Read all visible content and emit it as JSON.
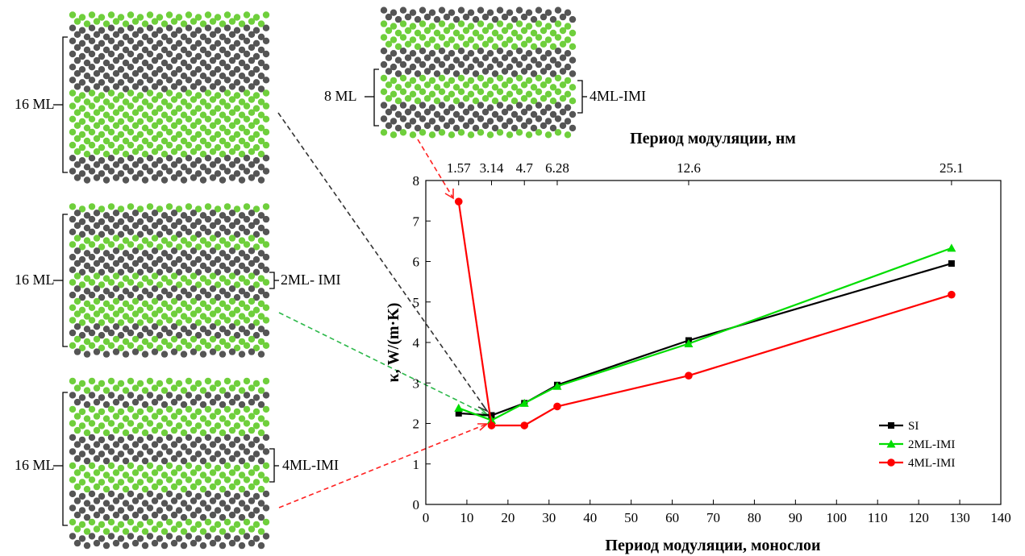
{
  "chart_data": {
    "type": "line",
    "xlabel": "Период модуляции, монослои",
    "x2label": "Период модуляции, нм",
    "ylabel": "κ, W/(m·K)",
    "xlim": [
      0,
      140
    ],
    "ylim": [
      0,
      8
    ],
    "xticks": [
      "0",
      "10",
      "20",
      "30",
      "40",
      "50",
      "60",
      "70",
      "80",
      "90",
      "100",
      "110",
      "120",
      "130",
      "140"
    ],
    "yticks": [
      "0",
      "1",
      "2",
      "3",
      "4",
      "5",
      "6",
      "7",
      "8"
    ],
    "x2ticks": [
      "1.57",
      "3.14",
      "4.7",
      "6.28",
      "12.6",
      "25.1"
    ],
    "x2tick_positions": [
      8,
      16,
      24,
      32,
      64,
      128
    ],
    "legend_position": "bottom-right",
    "series": [
      {
        "name": "SI",
        "color": "#000000",
        "marker": "square",
        "x": [
          8,
          16,
          24,
          32,
          64,
          128
        ],
        "y": [
          2.25,
          2.2,
          2.5,
          2.95,
          4.05,
          5.95
        ]
      },
      {
        "name": "2ML-IMI",
        "color": "#00dd00",
        "marker": "triangle",
        "x": [
          8,
          16,
          24,
          32,
          64,
          128
        ],
        "y": [
          2.38,
          2.08,
          2.5,
          2.92,
          3.97,
          6.33
        ]
      },
      {
        "name": "4ML-IMI",
        "color": "#ff0000",
        "marker": "circle",
        "x": [
          8,
          16,
          24,
          32,
          64,
          128
        ],
        "y": [
          7.48,
          1.95,
          1.95,
          2.42,
          3.18,
          5.18
        ]
      }
    ]
  },
  "structures": [
    {
      "label": "16 ML",
      "side_label": ""
    },
    {
      "label": "16 ML",
      "side_label": "2ML- IMI"
    },
    {
      "label": "16 ML",
      "side_label": "4ML-IMI"
    },
    {
      "label": "8 ML",
      "side_label": "4ML-IMI"
    }
  ],
  "colors": {
    "atom_green": "#6fcf3c",
    "atom_gray": "#555555",
    "arrow_black": "#333333",
    "arrow_green": "#2cb84a",
    "arrow_red": "#ff2020"
  }
}
